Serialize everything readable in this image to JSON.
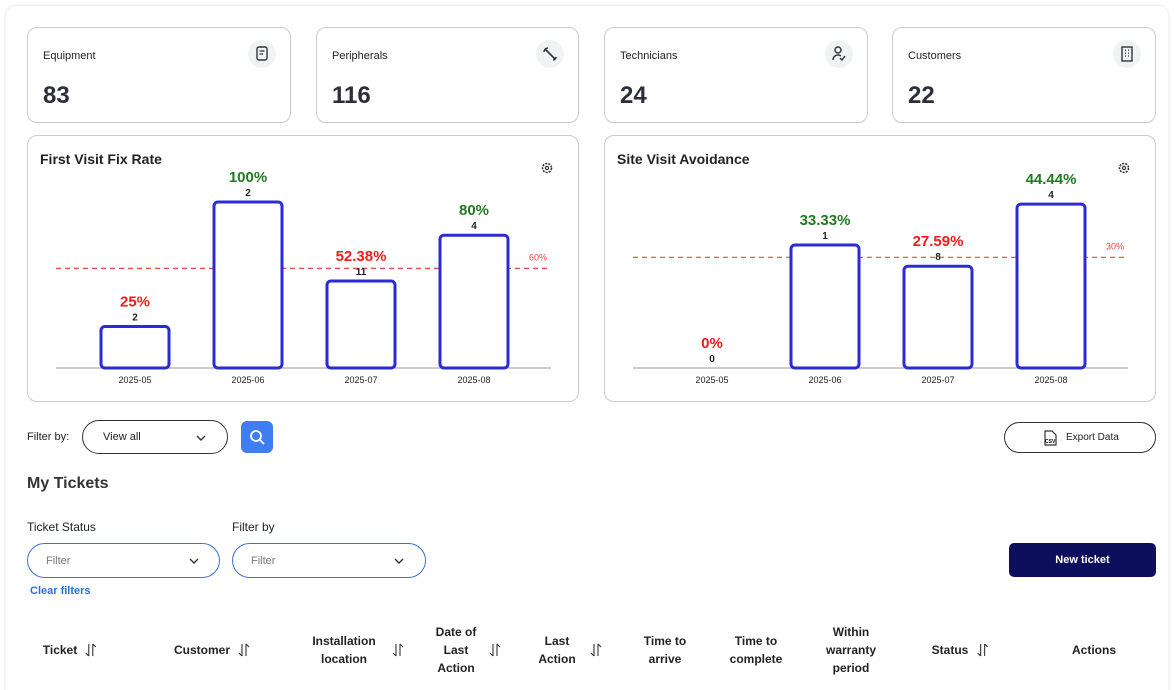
{
  "stat_cards": [
    {
      "label": "Equipment",
      "value": 83
    },
    {
      "label": "Peripherals",
      "value": 116
    },
    {
      "label": "Technicians",
      "value": 24
    },
    {
      "label": "Customers",
      "value": 22
    }
  ],
  "charts": [
    {
      "type": "bar",
      "title": "First Visit Fix Rate",
      "categories": [
        "2025-05",
        "2025-06",
        "2025-07",
        "2025-08"
      ],
      "values": [
        25,
        100,
        52.38,
        80
      ],
      "value_labels": [
        "25%",
        "100%",
        "52.38%",
        "80%"
      ],
      "counts": [
        2,
        2,
        11,
        4
      ],
      "target": {
        "value": 60,
        "label": "60%"
      },
      "ylim": [
        0,
        100
      ],
      "bar_color": "#2b2bd6",
      "above_color": "#1e7b1e",
      "below_color": "#ee1c1c",
      "target_color": "#ee4444"
    },
    {
      "type": "bar",
      "title": "Site Visit Avoidance",
      "categories": [
        "2025-05",
        "2025-06",
        "2025-07",
        "2025-08"
      ],
      "values": [
        0,
        33.33,
        27.59,
        44.44
      ],
      "value_labels": [
        "0%",
        "33.33%",
        "27.59%",
        "44.44%"
      ],
      "counts": [
        0,
        1,
        8,
        4
      ],
      "target": {
        "value": 30,
        "label": "30%"
      },
      "ylim": [
        0,
        45
      ],
      "bar_color": "#2b2bd6",
      "above_color": "#1e7b1e",
      "below_color": "#ee1c1c",
      "target_color": "#ee4444"
    }
  ],
  "filter_bar": {
    "label": "Filter by:",
    "select": "View all",
    "export": "Export Data"
  },
  "tickets": {
    "title": "My Tickets",
    "status_label": "Ticket Status",
    "filter_label": "Filter by",
    "status_placeholder": "Filter",
    "filter_placeholder": "Filter",
    "clear": "Clear filters",
    "new_ticket": "New ticket",
    "columns": [
      {
        "label": "Ticket",
        "sortable": true
      },
      {
        "label": "Customer",
        "sortable": true
      },
      {
        "label": "Installation location",
        "sortable": true
      },
      {
        "label": "Date of Last Action",
        "sortable": true
      },
      {
        "label": "Last Action",
        "sortable": true
      },
      {
        "label": "Time to arrive",
        "sortable": false
      },
      {
        "label": "Time to complete",
        "sortable": false
      },
      {
        "label": "Within warranty period",
        "sortable": false
      },
      {
        "label": "Status",
        "sortable": true
      },
      {
        "label": "Actions",
        "sortable": false
      }
    ]
  }
}
